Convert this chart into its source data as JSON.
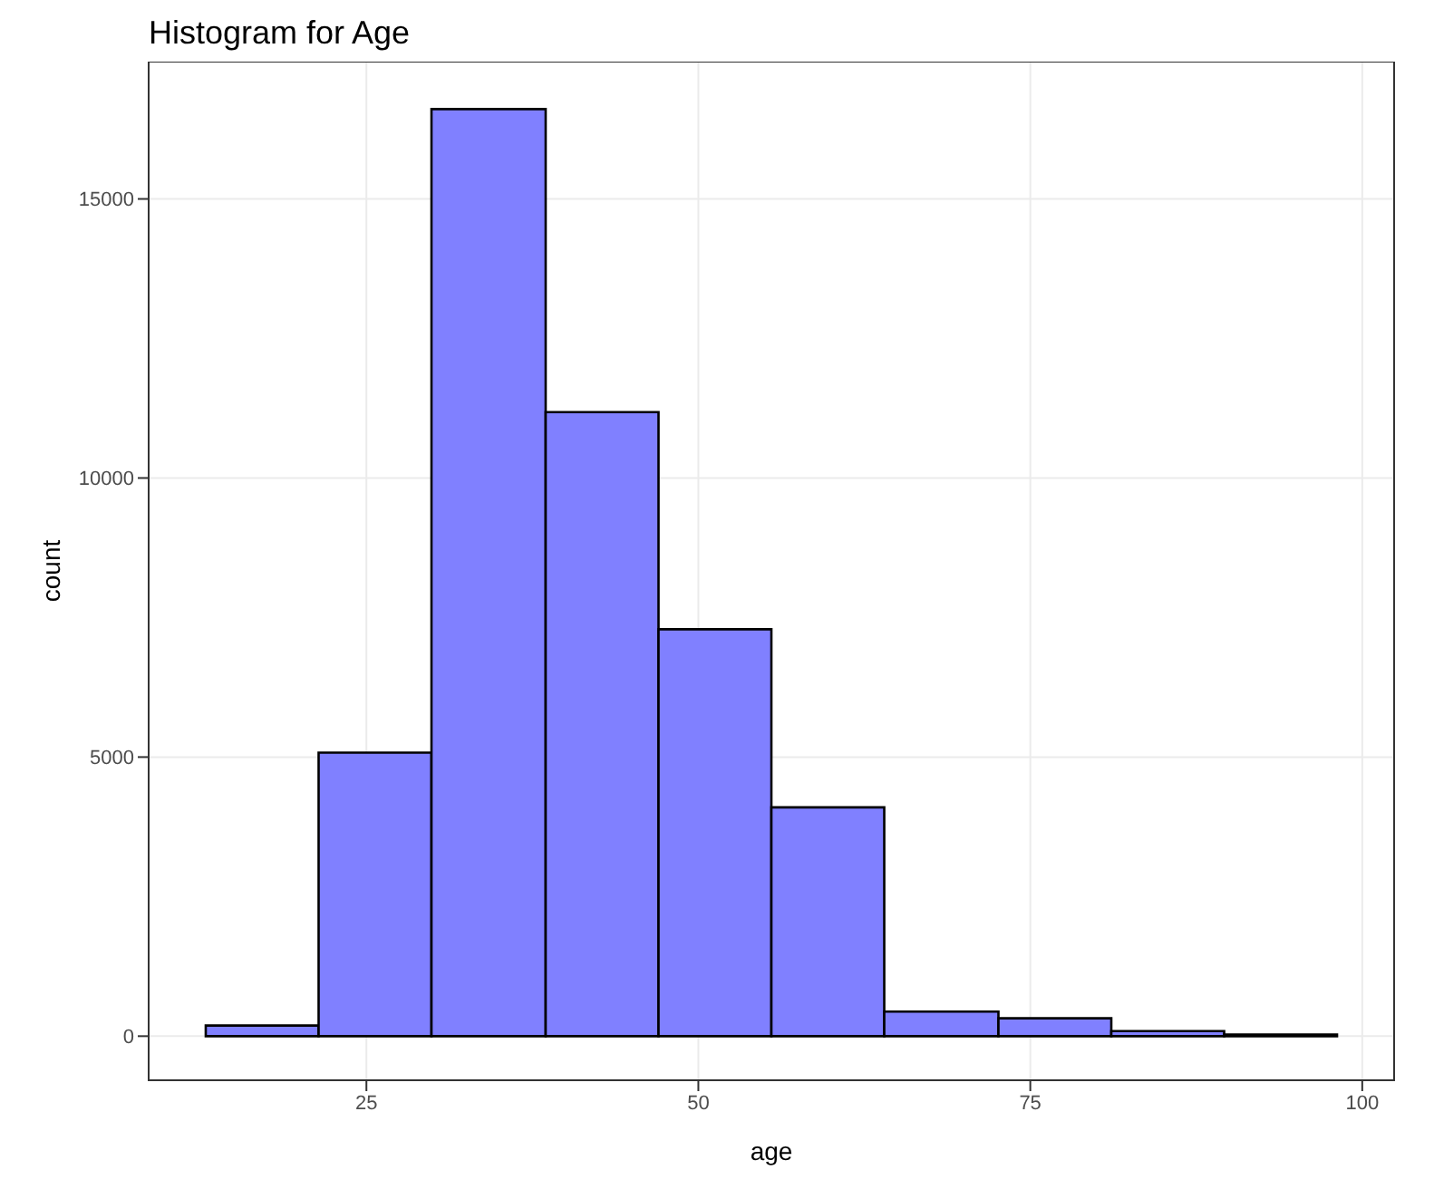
{
  "chart_data": {
    "type": "histogram",
    "title": "Histogram for Age",
    "xlabel": "age",
    "ylabel": "count",
    "bins": [
      12.9,
      21.4,
      29.9,
      38.5,
      47.0,
      55.5,
      64.0,
      72.6,
      81.1,
      89.6,
      98.1
    ],
    "values": [
      190,
      5080,
      16610,
      11180,
      7290,
      4100,
      440,
      320,
      90,
      30
    ],
    "color": "#8080ff",
    "xlim": [
      8.6,
      102.4
    ],
    "xticks": [
      25,
      50,
      75,
      100
    ],
    "ylim": [
      -790,
      17460
    ],
    "yticks": [
      0,
      5000,
      10000,
      15000
    ],
    "grid": true
  }
}
